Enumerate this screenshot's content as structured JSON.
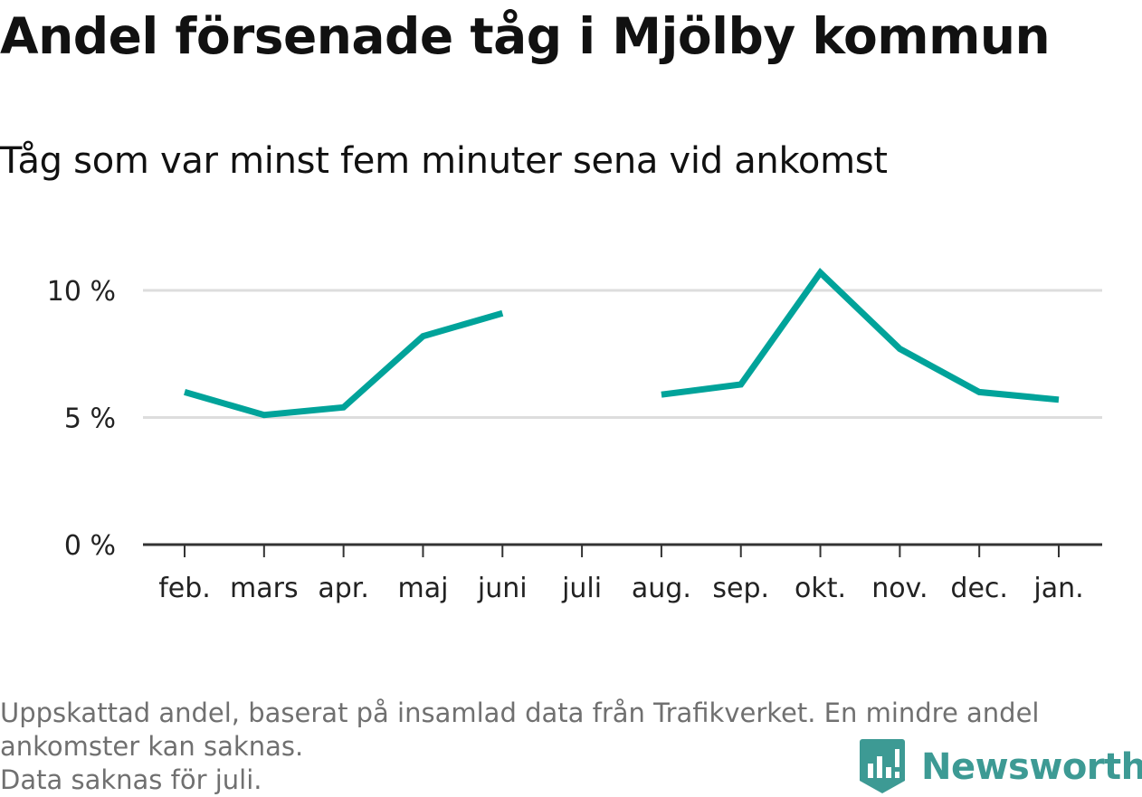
{
  "title": "Andel försenade tåg i Mjölby kommun",
  "subtitle": "Tåg som var minst fem minuter sena vid ankomst",
  "footnote": {
    "line1": "Uppskattad andel, baserat på insamlad data från Trafikverket. En mindre andel",
    "line2": "ankomster kan saknas.",
    "line3": "Data saknas för juli."
  },
  "brand": {
    "name": "Newsworthy",
    "icon": "newsworthy-logo-icon",
    "color": "#3d9a94"
  },
  "chart_data": {
    "type": "line",
    "categories": [
      "feb.",
      "mars",
      "apr.",
      "maj",
      "juni",
      "juli",
      "aug.",
      "sep.",
      "okt.",
      "nov.",
      "dec.",
      "jan."
    ],
    "series": [
      {
        "values": [
          6.0,
          5.1,
          5.4,
          8.2,
          9.1,
          null,
          5.9,
          6.3,
          10.7,
          7.7,
          6.0,
          5.7
        ]
      }
    ],
    "yticks": [
      0,
      5,
      10
    ],
    "ytick_labels": [
      "0 %",
      "5 %",
      "10 %"
    ],
    "ylim": [
      0,
      10
    ],
    "grid": true,
    "line_color": "#00a39a",
    "grid_color": "#dddddd",
    "axis_color": "#333333"
  }
}
